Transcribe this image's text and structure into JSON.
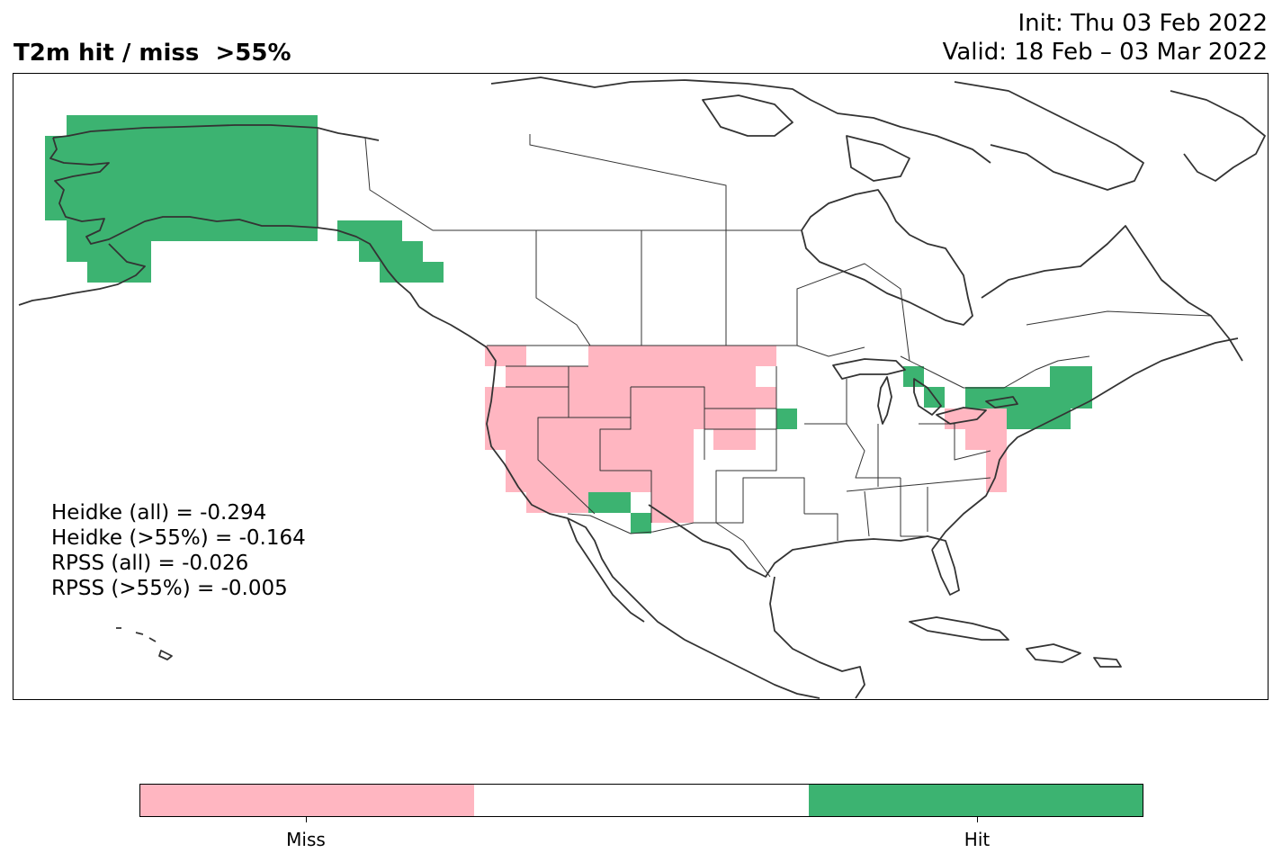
{
  "title": {
    "left": "T2m hit / miss  >55%",
    "init": "Init: Thu 03 Feb 2022",
    "valid": "Valid: 18 Feb – 03 Mar 2022"
  },
  "colors": {
    "miss": "#ffb6c1",
    "neutral": "#ffffff",
    "hit": "#3cb371",
    "coast": "#333333"
  },
  "stats": [
    "Heidke (all) = -0.294",
    "Heidke (>55%) = -0.164",
    "RPSS (all) = -0.026",
    "RPSS (>55%) = -0.005"
  ],
  "colorbar": {
    "labels": [
      "Miss",
      "Hit"
    ]
  },
  "regions": {
    "hit": [
      "Alaska",
      "Alaska panhandle / coastal British Columbia",
      "Michigan / Lake Huron area",
      "Iowa / Minnesota border",
      "Northeast US / New England",
      "Arizona–New Mexico border"
    ],
    "miss": [
      "Pacific Northwest",
      "Northern Rockies / Montana",
      "Dakotas / Nebraska",
      "California / Nevada / Utah",
      "Colorado / New Mexico",
      "Mid-Atlantic coast",
      "Lake Erie / New York"
    ]
  }
}
